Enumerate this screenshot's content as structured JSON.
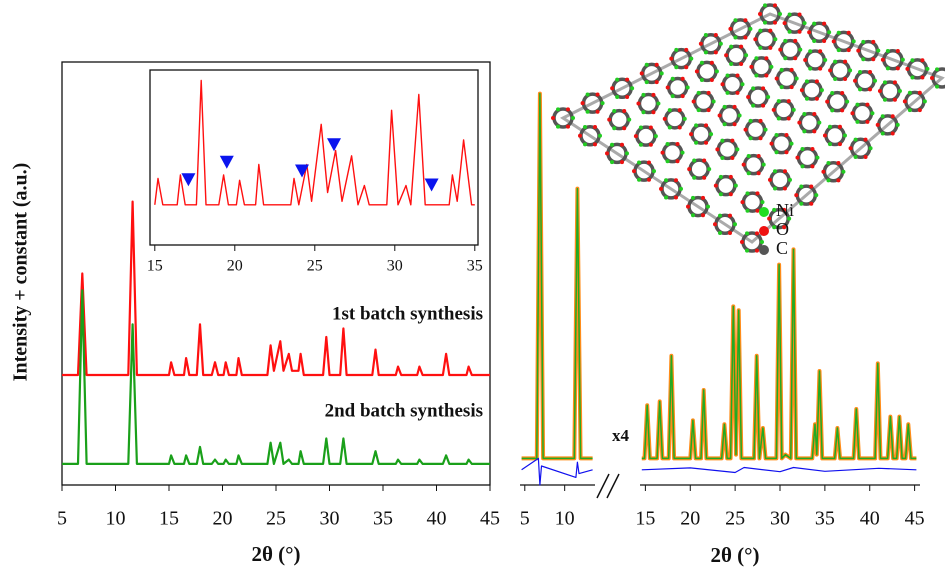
{
  "chart_data": [
    {
      "type": "line",
      "x_label": "2θ (°)",
      "y_label": "Intensity + constant (a.u.)",
      "xlim": [
        5,
        45
      ],
      "xticks": [
        5,
        10,
        15,
        20,
        25,
        30,
        35,
        40,
        45
      ],
      "ylim": [
        0,
        100
      ],
      "label_color": "#1f3f73",
      "series": [
        {
          "name": "1st batch synthesis",
          "color": "#ff1010",
          "x": [
            5,
            6.5,
            6.9,
            7.3,
            11.2,
            11.6,
            12.0,
            15.0,
            15.2,
            15.5,
            16.4,
            16.6,
            16.9,
            17.6,
            17.9,
            18.2,
            19.0,
            19.3,
            19.6,
            20.1,
            20.3,
            20.6,
            21.3,
            21.5,
            21.8,
            24.2,
            24.5,
            24.8,
            25.4,
            25.7,
            26.2,
            26.5,
            27.1,
            27.3,
            27.6,
            29.4,
            29.7,
            30.0,
            31.0,
            31.3,
            31.6,
            34.0,
            34.3,
            34.6,
            36.2,
            36.4,
            36.7,
            38.2,
            38.4,
            38.7,
            40.6,
            40.9,
            41.2,
            42.8,
            43.0,
            43.3,
            45
          ],
          "values": [
            26,
            26,
            50,
            26,
            26,
            67,
            26,
            26,
            29,
            26,
            26,
            30,
            26,
            26,
            38,
            26,
            26,
            29,
            26,
            26,
            29,
            26,
            26,
            30,
            26,
            26,
            33,
            27,
            34,
            27,
            31,
            27,
            27,
            31,
            26,
            26,
            35,
            26,
            26,
            37,
            26,
            26,
            32,
            26,
            26,
            28,
            26,
            26,
            28,
            26,
            26,
            31,
            26,
            26,
            28,
            26,
            26
          ]
        },
        {
          "name": "2nd batch synthesis",
          "color": "#1aa01a",
          "x": [
            5,
            6.5,
            6.9,
            7.3,
            11.2,
            11.6,
            12.0,
            15.0,
            15.2,
            15.5,
            16.4,
            16.6,
            16.9,
            17.6,
            17.9,
            18.2,
            19.0,
            19.3,
            19.6,
            20.1,
            20.3,
            20.6,
            21.3,
            21.5,
            21.8,
            24.2,
            24.5,
            24.8,
            25.4,
            25.7,
            26.2,
            26.5,
            27.1,
            27.3,
            27.6,
            29.4,
            29.7,
            30.0,
            31.0,
            31.3,
            31.6,
            34.0,
            34.3,
            34.6,
            36.2,
            36.4,
            36.7,
            38.2,
            38.4,
            38.7,
            40.6,
            40.9,
            41.2,
            42.8,
            43.0,
            43.3,
            45
          ],
          "values": [
            5,
            5,
            46,
            5,
            5,
            38,
            5,
            5,
            7,
            5,
            5,
            7,
            5,
            5,
            9,
            5,
            5,
            6,
            5,
            5,
            6,
            5,
            5,
            7,
            5,
            5,
            10,
            5,
            10,
            5,
            6,
            5,
            5,
            8,
            5,
            5,
            11,
            5,
            5,
            11,
            5,
            5,
            8,
            5,
            5,
            6,
            5,
            5,
            6,
            5,
            5,
            7,
            5,
            5,
            6,
            5,
            5
          ]
        }
      ]
    },
    {
      "type": "line",
      "xlim": [
        14.7,
        35.2
      ],
      "xticks": [
        15,
        20,
        25,
        30,
        35
      ],
      "ylim": [
        0,
        100
      ],
      "series": [
        {
          "color": "#ff1010",
          "x": [
            15,
            15.2,
            15.5,
            16.4,
            16.6,
            16.9,
            17.6,
            17.9,
            18.2,
            19.0,
            19.3,
            19.6,
            20.1,
            20.3,
            20.6,
            21.3,
            21.5,
            21.8,
            23.5,
            23.7,
            24.0,
            24.5,
            24.8,
            25.4,
            25.8,
            26.3,
            26.7,
            27.3,
            27.7,
            28.1,
            28.4,
            29.5,
            29.8,
            30.2,
            30.7,
            31.0,
            31.5,
            31.9,
            33.4,
            33.6,
            33.9,
            34.3,
            34.8,
            35
          ],
          "values": [
            23,
            38,
            23,
            23,
            40,
            23,
            23,
            94,
            23,
            23,
            40,
            23,
            23,
            37,
            23,
            23,
            46,
            23,
            23,
            38,
            23,
            46,
            25,
            69,
            30,
            54,
            25,
            51,
            23,
            34,
            23,
            23,
            77,
            23,
            34,
            23,
            86,
            23,
            23,
            40,
            25,
            60,
            23,
            23
          ]
        }
      ],
      "markers": {
        "color": "#0a14ee",
        "x": [
          17.1,
          19.5,
          24.2,
          26.2,
          32.3
        ],
        "values": [
          37,
          47,
          42,
          57,
          34
        ]
      }
    },
    {
      "type": "refinement",
      "x_label": "2θ (°)",
      "annotation": "x4",
      "ylim": [
        -4,
        101
      ],
      "legend": [
        {
          "name": "Ni",
          "color": "#22dd22"
        },
        {
          "name": "O",
          "color": "#ee1111"
        },
        {
          "name": "C",
          "color": "#555555"
        }
      ],
      "panels": [
        {
          "xlim": [
            4.4,
            13.8
          ],
          "xticks": [
            5,
            10
          ],
          "series": [
            {
              "color": "#ff8c1a",
              "x": [
                4.6,
                6.5,
                6.9,
                7.3,
                11.2,
                11.6,
                12.0,
                13.5
              ],
              "values": [
                3,
                3,
                99,
                3,
                3,
                74,
                3,
                3
              ]
            },
            {
              "color": "#22aa22",
              "x": [
                4.6,
                6.5,
                6.9,
                7.3,
                11.2,
                11.6,
                12.0,
                13.5
              ],
              "values": [
                3,
                3,
                99,
                3,
                3,
                74,
                3,
                3
              ]
            },
            {
              "color": "#1010ee",
              "x": [
                4.6,
                6.7,
                6.9,
                7.1,
                11.4,
                11.6,
                11.8,
                13.5
              ],
              "values": [
                0,
                3,
                -4,
                1,
                -2,
                2,
                -1,
                0
              ]
            }
          ]
        },
        {
          "xlim": [
            14.4,
            45.6
          ],
          "xticks": [
            15,
            20,
            25,
            30,
            35,
            40,
            45
          ],
          "series": [
            {
              "color": "#ff8c1a",
              "x": [
                14.6,
                14.9,
                15.2,
                15.5,
                16.3,
                16.6,
                16.9,
                17.6,
                17.9,
                18.2,
                20.0,
                20.3,
                20.6,
                21.2,
                21.5,
                21.8,
                23.5,
                23.8,
                24.1,
                24.5,
                24.8,
                25.1,
                25.4,
                25.7,
                27.1,
                27.4,
                27.7,
                28.1,
                28.4,
                29.6,
                29.9,
                30.2,
                30.6,
                31.2,
                31.5,
                31.8,
                33.6,
                33.9,
                34.1,
                34.4,
                34.7,
                36.1,
                36.4,
                36.7,
                38.2,
                38.5,
                38.8,
                40.6,
                40.9,
                41.2,
                42.0,
                42.3,
                42.6,
                43.0,
                43.3,
                43.6,
                44.0,
                44.3,
                44.6,
                45.2
              ],
              "values": [
                3,
                3,
                17,
                3,
                3,
                18,
                3,
                3,
                30,
                3,
                3,
                13,
                3,
                3,
                21,
                3,
                3,
                12,
                3,
                3,
                43,
                4,
                42,
                3,
                3,
                30,
                3,
                11,
                3,
                3,
                54,
                3,
                4,
                3,
                58,
                3,
                3,
                12,
                4,
                26,
                3,
                3,
                11,
                3,
                3,
                16,
                3,
                3,
                28,
                3,
                3,
                14,
                3,
                3,
                14,
                3,
                3,
                12,
                3,
                3
              ]
            },
            {
              "color": "#22aa22",
              "x": [
                14.6,
                14.9,
                15.2,
                15.5,
                16.3,
                16.6,
                16.9,
                17.6,
                17.9,
                18.2,
                20.0,
                20.3,
                20.6,
                21.2,
                21.5,
                21.8,
                23.5,
                23.8,
                24.1,
                24.5,
                24.8,
                25.1,
                25.4,
                25.7,
                27.1,
                27.4,
                27.7,
                28.1,
                28.4,
                29.6,
                29.9,
                30.2,
                30.6,
                31.2,
                31.5,
                31.8,
                33.6,
                33.9,
                34.1,
                34.4,
                34.7,
                36.1,
                36.4,
                36.7,
                38.2,
                38.5,
                38.8,
                40.6,
                40.9,
                41.2,
                42.0,
                42.3,
                42.6,
                43.0,
                43.3,
                43.6,
                44.0,
                44.3,
                44.6,
                45.2
              ],
              "values": [
                3,
                3,
                17,
                3,
                3,
                18,
                3,
                3,
                30,
                3,
                3,
                13,
                3,
                3,
                21,
                3,
                3,
                12,
                3,
                3,
                43,
                4,
                42,
                3,
                3,
                30,
                3,
                11,
                3,
                3,
                54,
                3,
                4,
                3,
                58,
                3,
                3,
                12,
                4,
                26,
                3,
                3,
                11,
                3,
                3,
                16,
                3,
                3,
                28,
                3,
                3,
                14,
                3,
                3,
                14,
                3,
                3,
                12,
                3,
                3
              ]
            },
            {
              "color": "#1010ee",
              "x": [
                14.6,
                20,
                25,
                26,
                30,
                31.5,
                35,
                41,
                45.2
              ],
              "values": [
                0,
                0.5,
                -0.7,
                0.6,
                -0.5,
                0.6,
                -0.4,
                0.4,
                0
              ]
            }
          ]
        }
      ]
    }
  ]
}
